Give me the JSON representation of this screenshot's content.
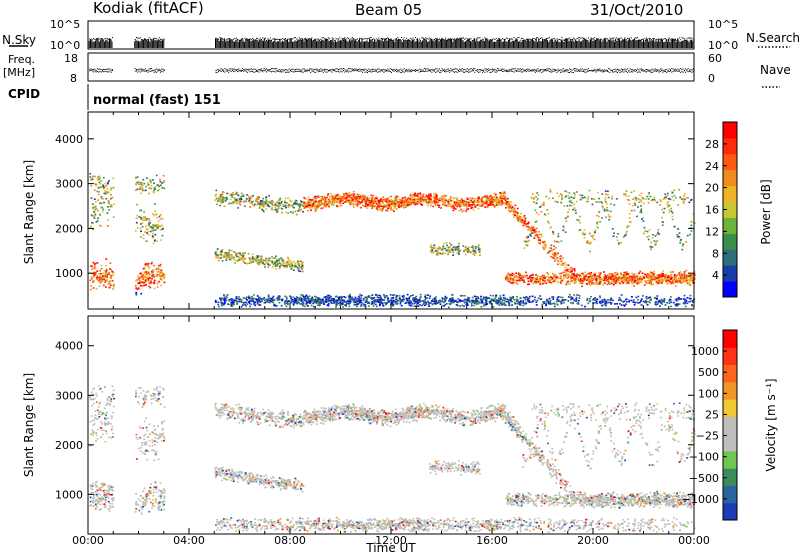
{
  "header": {
    "site": "Kodiak (fitACF)",
    "beam": "Beam 05",
    "date": "31/Oct/2010"
  },
  "housekeeping": {
    "nsky_label": "N.Sky",
    "nsearch_label": "N.Search",
    "noise_ticks": [
      "10^5",
      "10^0"
    ],
    "freq_label_1": "Freq.",
    "freq_label_2": "[MHz]",
    "freq_ticks": [
      "18",
      "8"
    ],
    "nave_label": "Nave",
    "nave_ticks": [
      "60",
      "0"
    ],
    "cpid_label": "CPID",
    "cpid_value": "normal (fast) 151"
  },
  "chart_data": [
    {
      "type": "heatmap",
      "name": "power",
      "ylabel": "Slant Range [km]",
      "xlabel": "Time UT",
      "yticks": [
        1000,
        2000,
        3000,
        4000
      ],
      "ylim": [
        200,
        4600
      ],
      "xlim_hours": [
        0,
        24
      ],
      "xticks": [
        "00:00",
        "04:00",
        "08:00",
        "12:00",
        "16:00",
        "20:00",
        "00:00"
      ],
      "colorbar": {
        "label": "Power [dB]",
        "ticks": [
          "28",
          "24",
          "20",
          "16",
          "12",
          "8",
          "4"
        ],
        "colors": [
          "#0000ff",
          "#1a3ca8",
          "#2e6e78",
          "#3a8c4a",
          "#6fb23c",
          "#c8c832",
          "#f0b428",
          "#f08c1e",
          "#ff5a14",
          "#ff2a0a",
          "#ff0000"
        ]
      }
    },
    {
      "type": "heatmap",
      "name": "velocity",
      "ylabel": "Slant Range [km]",
      "xlabel": "Time UT",
      "yticks": [
        1000,
        2000,
        3000,
        4000
      ],
      "ylim": [
        200,
        4600
      ],
      "xlim_hours": [
        0,
        24
      ],
      "xticks": [
        "00:00",
        "04:00",
        "08:00",
        "12:00",
        "16:00",
        "20:00",
        "00:00"
      ],
      "colorbar": {
        "label": "Velocity [m s⁻¹]",
        "ticks": [
          "1000",
          "500",
          "100",
          "25",
          "−25",
          "−100",
          "−500",
          "−1000"
        ],
        "colors": [
          "#1e3cb4",
          "#2a64a0",
          "#3a8c5a",
          "#6ec850",
          "#bebebe",
          "#bebebe",
          "#f0c832",
          "#f09628",
          "#ff641e",
          "#ff3214",
          "#ff0000"
        ]
      }
    }
  ]
}
